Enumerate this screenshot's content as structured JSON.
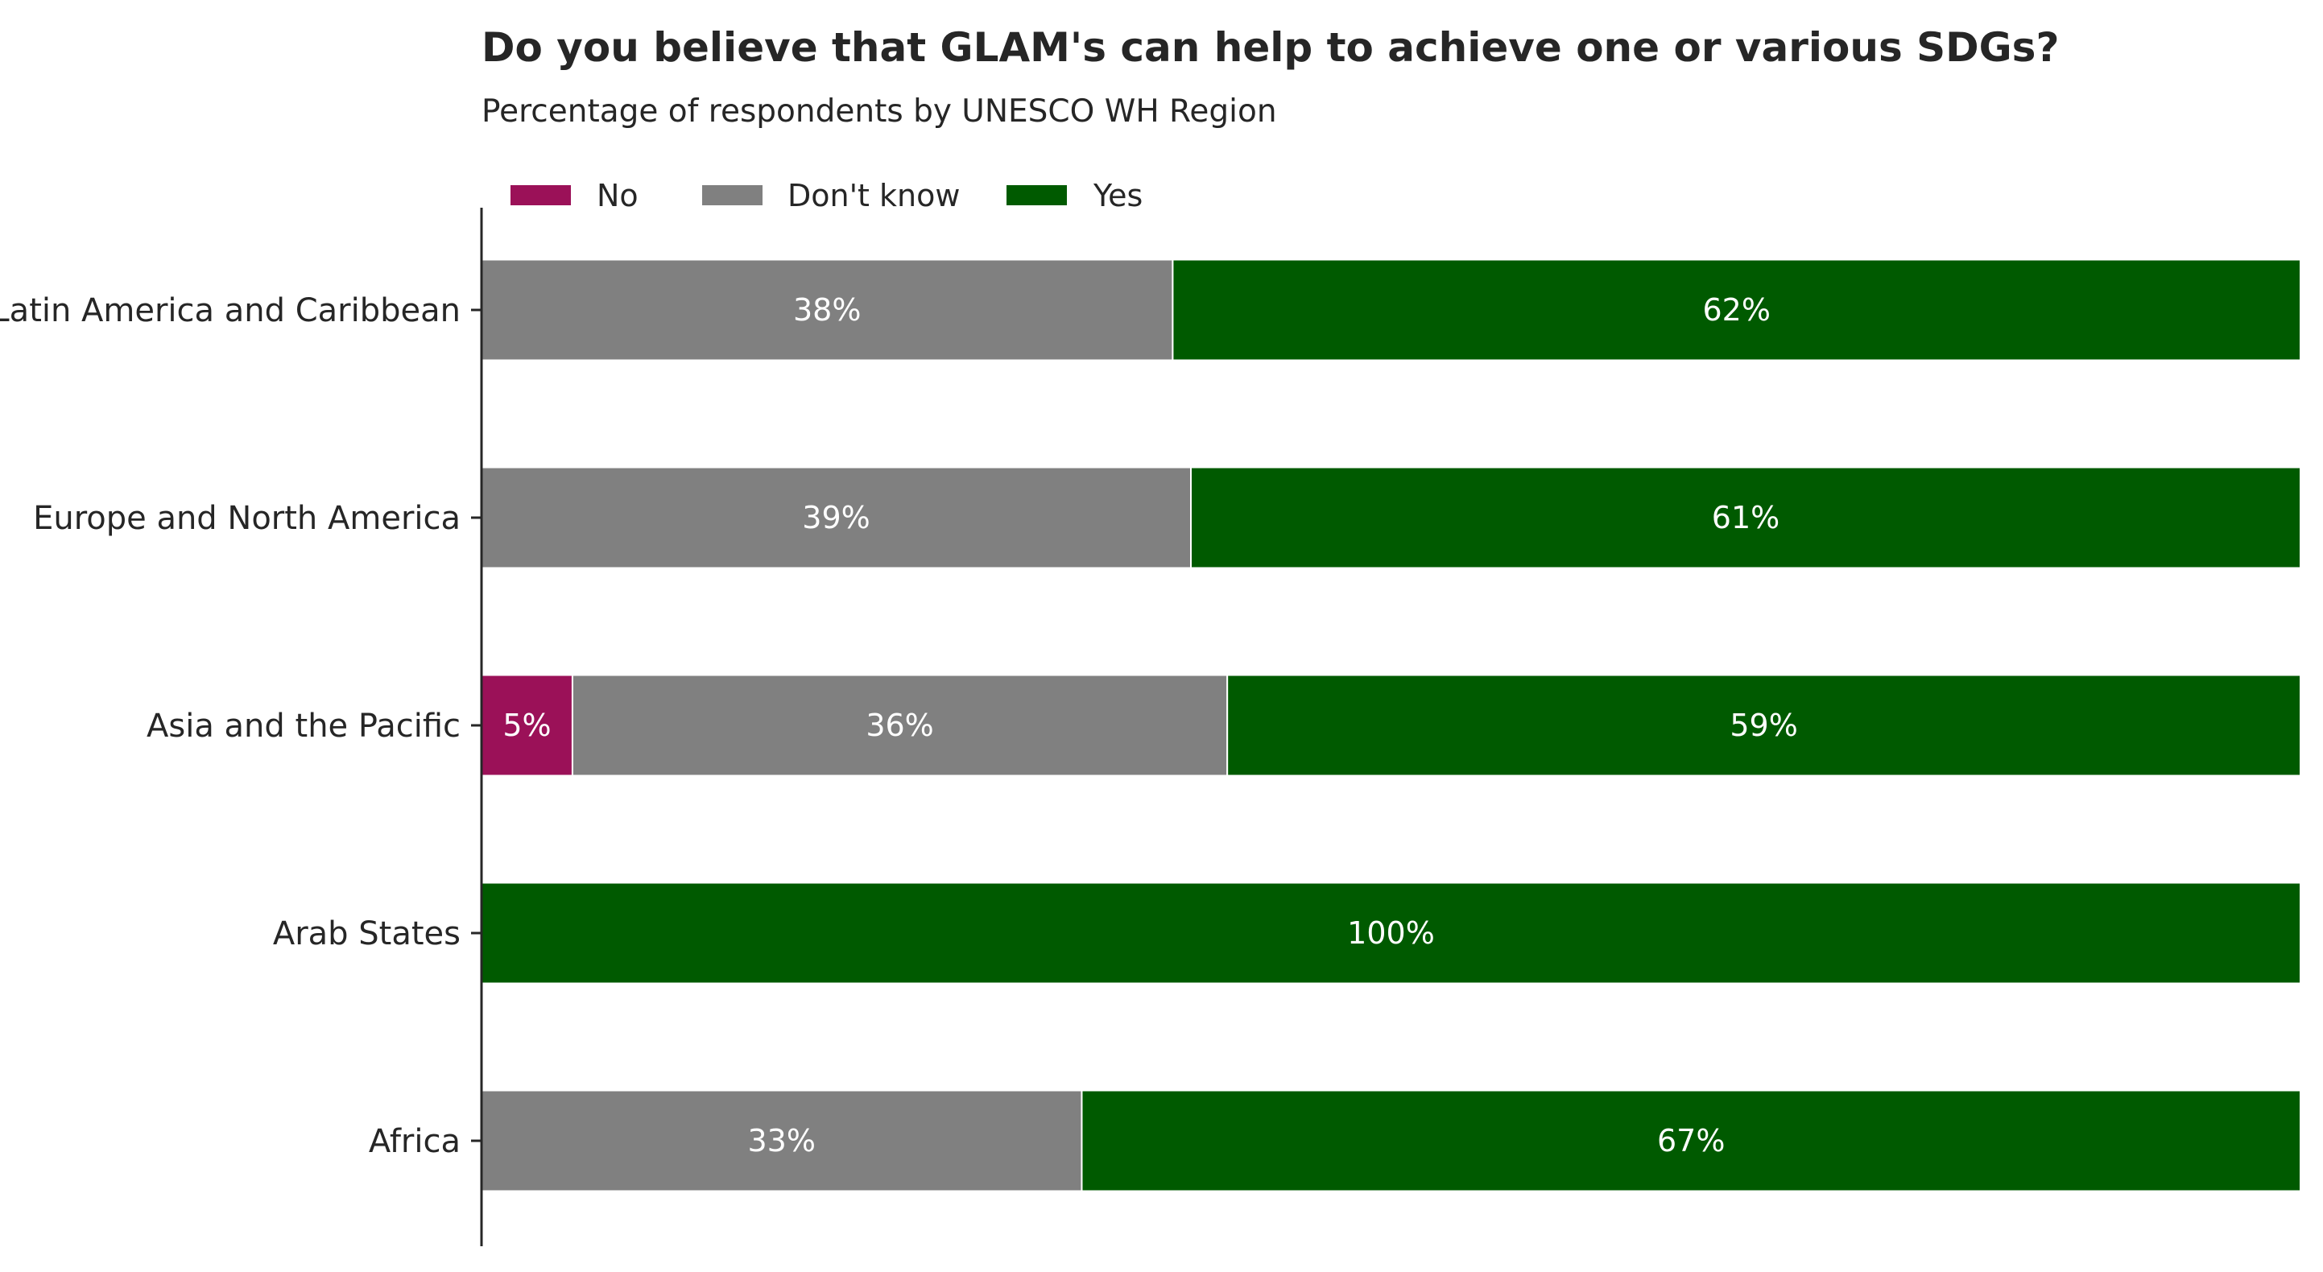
{
  "chart_data": {
    "type": "bar",
    "orientation": "horizontal",
    "stacked": true,
    "title": "Do you believe that GLAM's can help to achieve one or various SDGs?",
    "subtitle": "Percentage of respondents by UNESCO WH Region",
    "categories": [
      "Latin America and Caribbean",
      "Europe and North America",
      "Asia and the Pacific",
      "Arab States",
      "Africa"
    ],
    "series": [
      {
        "name": "No",
        "color": "#9b1158",
        "values": [
          0,
          0,
          5,
          0,
          0
        ]
      },
      {
        "name": "Don't know",
        "color": "#808080",
        "values": [
          38,
          39,
          36,
          0,
          33
        ]
      },
      {
        "name": "Yes",
        "color": "#005a00",
        "values": [
          62,
          61,
          59,
          100,
          67
        ]
      }
    ],
    "data_labels": [
      [
        null,
        null,
        "5%",
        null,
        null
      ],
      [
        "38%",
        "39%",
        "36%",
        null,
        "33%"
      ],
      [
        "62%",
        "61%",
        "59%",
        "100%",
        "67%"
      ]
    ],
    "xlim": [
      0,
      100
    ],
    "legend_position": "top-left",
    "grid": false
  }
}
